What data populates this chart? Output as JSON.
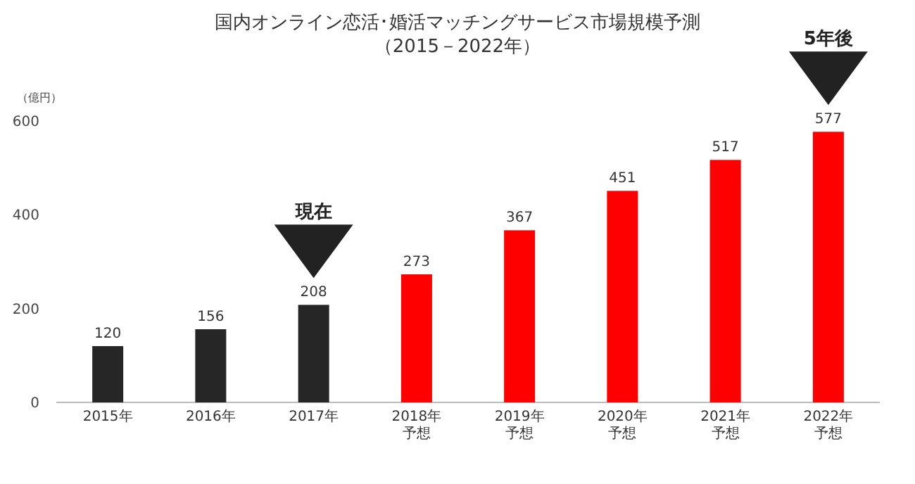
{
  "chart_data": {
    "type": "bar",
    "title": "国内オンライン恋活･婚活マッチングサービス市場規模予測",
    "subtitle": "（2015－2022年）",
    "ylabel": "（億円）",
    "categories": [
      "2015年",
      "2016年",
      "2017年",
      "2018年予想",
      "2019年予想",
      "2020年予想",
      "2021年予想",
      "2022年予想"
    ],
    "values": [
      120,
      156,
      208,
      273,
      367,
      451,
      517,
      577
    ],
    "colors": [
      "#262626",
      "#262626",
      "#262626",
      "#ff0000",
      "#ff0000",
      "#ff0000",
      "#ff0000",
      "#ff0000"
    ],
    "data_labels": true,
    "ylim": [
      0,
      600
    ],
    "yticks": [
      0,
      200,
      400,
      600
    ],
    "grid": false,
    "annotations": [
      "現在",
      "5年後"
    ]
  }
}
